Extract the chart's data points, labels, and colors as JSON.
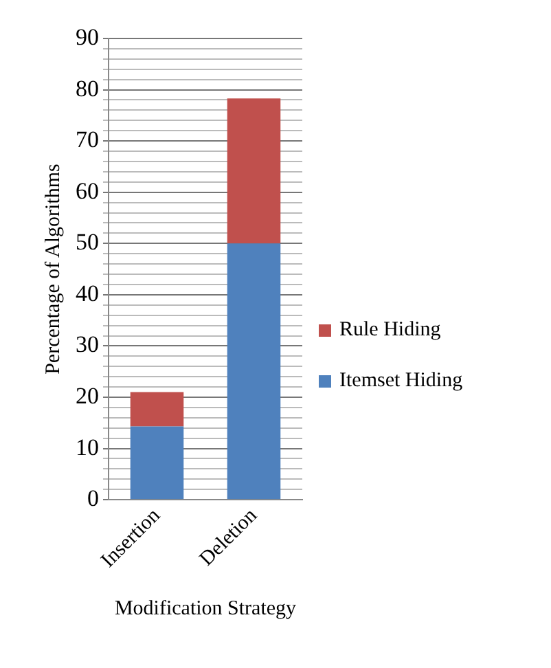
{
  "chart_data": {
    "type": "bar",
    "stacked": true,
    "categories": [
      "Insertion",
      "Deletion"
    ],
    "series": [
      {
        "name": "Itemset Hiding",
        "color": "#4f81bd",
        "values": [
          14.3,
          50
        ]
      },
      {
        "name": "Rule Hiding",
        "color": "#c0504d",
        "values": [
          6.7,
          28.3
        ]
      }
    ],
    "ylabel": "Percentage of Algorithms",
    "xlabel": "Modification Strategy",
    "ylim": [
      0,
      90
    ],
    "yticks": [
      0,
      {
        "value": 2,
        "label": null
      },
      {
        "value": 4,
        "label": null
      },
      {
        "value": 6,
        "label": null
      },
      {
        "value": 8,
        "label": null
      },
      10,
      {
        "value": 12,
        "label": null
      },
      {
        "value": 14,
        "label": null
      },
      {
        "value": 16,
        "label": null
      },
      {
        "value": 18,
        "label": null
      },
      20,
      {
        "value": 22,
        "label": null
      },
      {
        "value": 24,
        "label": null
      },
      {
        "value": 26,
        "label": null
      },
      {
        "value": 28,
        "label": null
      },
      30,
      {
        "value": 32,
        "label": null
      },
      {
        "value": 34,
        "label": null
      },
      {
        "value": 36,
        "label": null
      },
      {
        "value": 38,
        "label": null
      },
      40,
      {
        "value": 42,
        "label": null
      },
      {
        "value": 44,
        "label": null
      },
      {
        "value": 46,
        "label": null
      },
      {
        "value": 48,
        "label": null
      },
      50,
      {
        "value": 52,
        "label": null
      },
      {
        "value": 54,
        "label": null
      },
      {
        "value": 56,
        "label": null
      },
      {
        "value": 58,
        "label": null
      },
      60,
      {
        "value": 62,
        "label": null
      },
      {
        "value": 64,
        "label": null
      },
      {
        "value": 66,
        "label": null
      },
      {
        "value": 68,
        "label": null
      },
      70,
      {
        "value": 72,
        "label": null
      },
      {
        "value": 74,
        "label": null
      },
      {
        "value": 76,
        "label": null
      },
      {
        "value": 78,
        "label": null
      },
      80,
      {
        "value": 82,
        "label": null
      },
      {
        "value": 84,
        "label": null
      },
      {
        "value": 86,
        "label": null
      },
      {
        "value": 88,
        "label": null
      },
      90
    ],
    "grid": "y",
    "legend": "right"
  }
}
